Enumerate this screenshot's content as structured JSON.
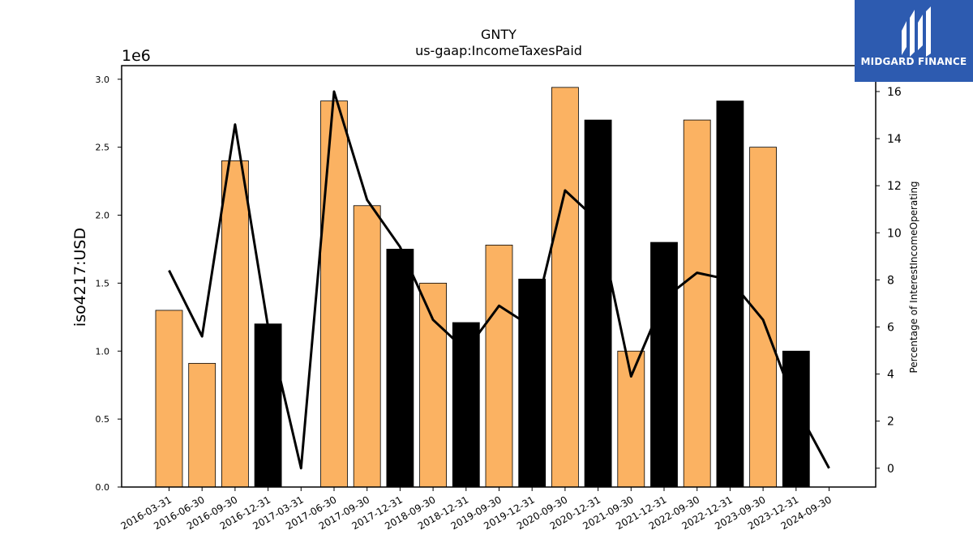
{
  "chart_data": {
    "type": "bar",
    "title": "GNTY",
    "subtitle": "us-gaap:IncomeTaxesPaid",
    "ylabel": "iso4217:USD",
    "y_offset_label": "1e6",
    "y2label": "Percentage of InterestIncomeOperating",
    "ylim": [
      0,
      3.1
    ],
    "y2lim": [
      -0.8,
      17.1
    ],
    "yticks": [
      "0.0",
      "0.5",
      "1.0",
      "1.5",
      "2.0",
      "2.5",
      "3.0"
    ],
    "y2ticks": [
      "0",
      "2",
      "4",
      "6",
      "8",
      "10",
      "12",
      "14",
      "16"
    ],
    "categories": [
      "2016-03-31",
      "2016-06-30",
      "2016-09-30",
      "2016-12-31",
      "2017-03-31",
      "2017-06-30",
      "2017-09-30",
      "2017-12-31",
      "2018-09-30",
      "2018-12-31",
      "2019-09-30",
      "2019-12-31",
      "2020-09-30",
      "2020-12-31",
      "2021-09-30",
      "2021-12-31",
      "2022-09-30",
      "2022-12-31",
      "2023-09-30",
      "2023-12-31",
      "2024-09-30"
    ],
    "series": [
      {
        "type": "bar",
        "values": [
          1.3,
          0.91,
          2.4,
          1.2,
          0,
          2.84,
          2.07,
          1.75,
          1.5,
          1.21,
          1.78,
          1.53,
          2.94,
          2.7,
          1.0,
          1.8,
          2.7,
          2.84,
          2.5,
          1.0,
          0
        ],
        "colors": [
          "#fbb262",
          "#fbb262",
          "#fbb262",
          "#000000",
          "#fbb262",
          "#fbb262",
          "#fbb262",
          "#000000",
          "#fbb262",
          "#000000",
          "#fbb262",
          "#000000",
          "#fbb262",
          "#000000",
          "#fbb262",
          "#000000",
          "#fbb262",
          "#000000",
          "#fbb262",
          "#000000",
          "#fbb262"
        ]
      },
      {
        "type": "line",
        "axis": "right",
        "color": "#000000",
        "values": [
          8.4,
          5.6,
          14.6,
          6.0,
          0.0,
          16.0,
          11.4,
          9.4,
          6.3,
          5.0,
          6.9,
          6.0,
          11.8,
          10.5,
          3.9,
          7.2,
          8.3,
          8.0,
          6.3,
          2.6,
          0.0
        ]
      }
    ]
  },
  "logo": {
    "text": "MIDGARD FINANCE",
    "background": "#2d5bb0"
  }
}
